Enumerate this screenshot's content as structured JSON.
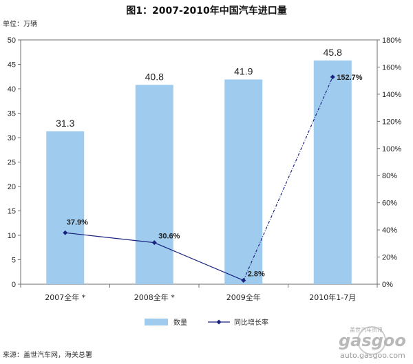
{
  "chart_data": {
    "type": "bar",
    "title": "图1：2007-2010年中国汽车进口量",
    "unit_label": "单位：万辆",
    "categories": [
      "2007全年 *",
      "2008全年 *",
      "2009全年",
      "2010年1-7月"
    ],
    "series": [
      {
        "name": "数量",
        "type": "bar",
        "axis": "left",
        "color": "#9fcbee",
        "values": [
          31.3,
          40.8,
          41.9,
          45.8
        ],
        "labels": [
          "31.3",
          "40.8",
          "41.9",
          "45.8"
        ]
      },
      {
        "name": "同比增长率",
        "type": "line",
        "axis": "right",
        "color": "#1a237e",
        "values": [
          37.9,
          30.6,
          2.8,
          152.7
        ],
        "labels": [
          "37.9%",
          "30.6%",
          "2.8%",
          "152.7%"
        ]
      }
    ],
    "y_left": {
      "min": 0,
      "max": 50,
      "ticks": [
        0,
        5,
        10,
        15,
        20,
        25,
        30,
        35,
        40,
        45,
        50
      ]
    },
    "y_right": {
      "min": 0,
      "max": 180,
      "ticks": [
        "0%",
        "20%",
        "40%",
        "60%",
        "80%",
        "100%",
        "120%",
        "140%",
        "160%",
        "180%"
      ]
    },
    "legend_position": "bottom",
    "source": "来源：盖世汽车网，海关总署"
  },
  "watermark": {
    "brand": "gasgoo",
    "url": "auto.gasgoo.com",
    "tagline": "盖世汽车资讯"
  }
}
